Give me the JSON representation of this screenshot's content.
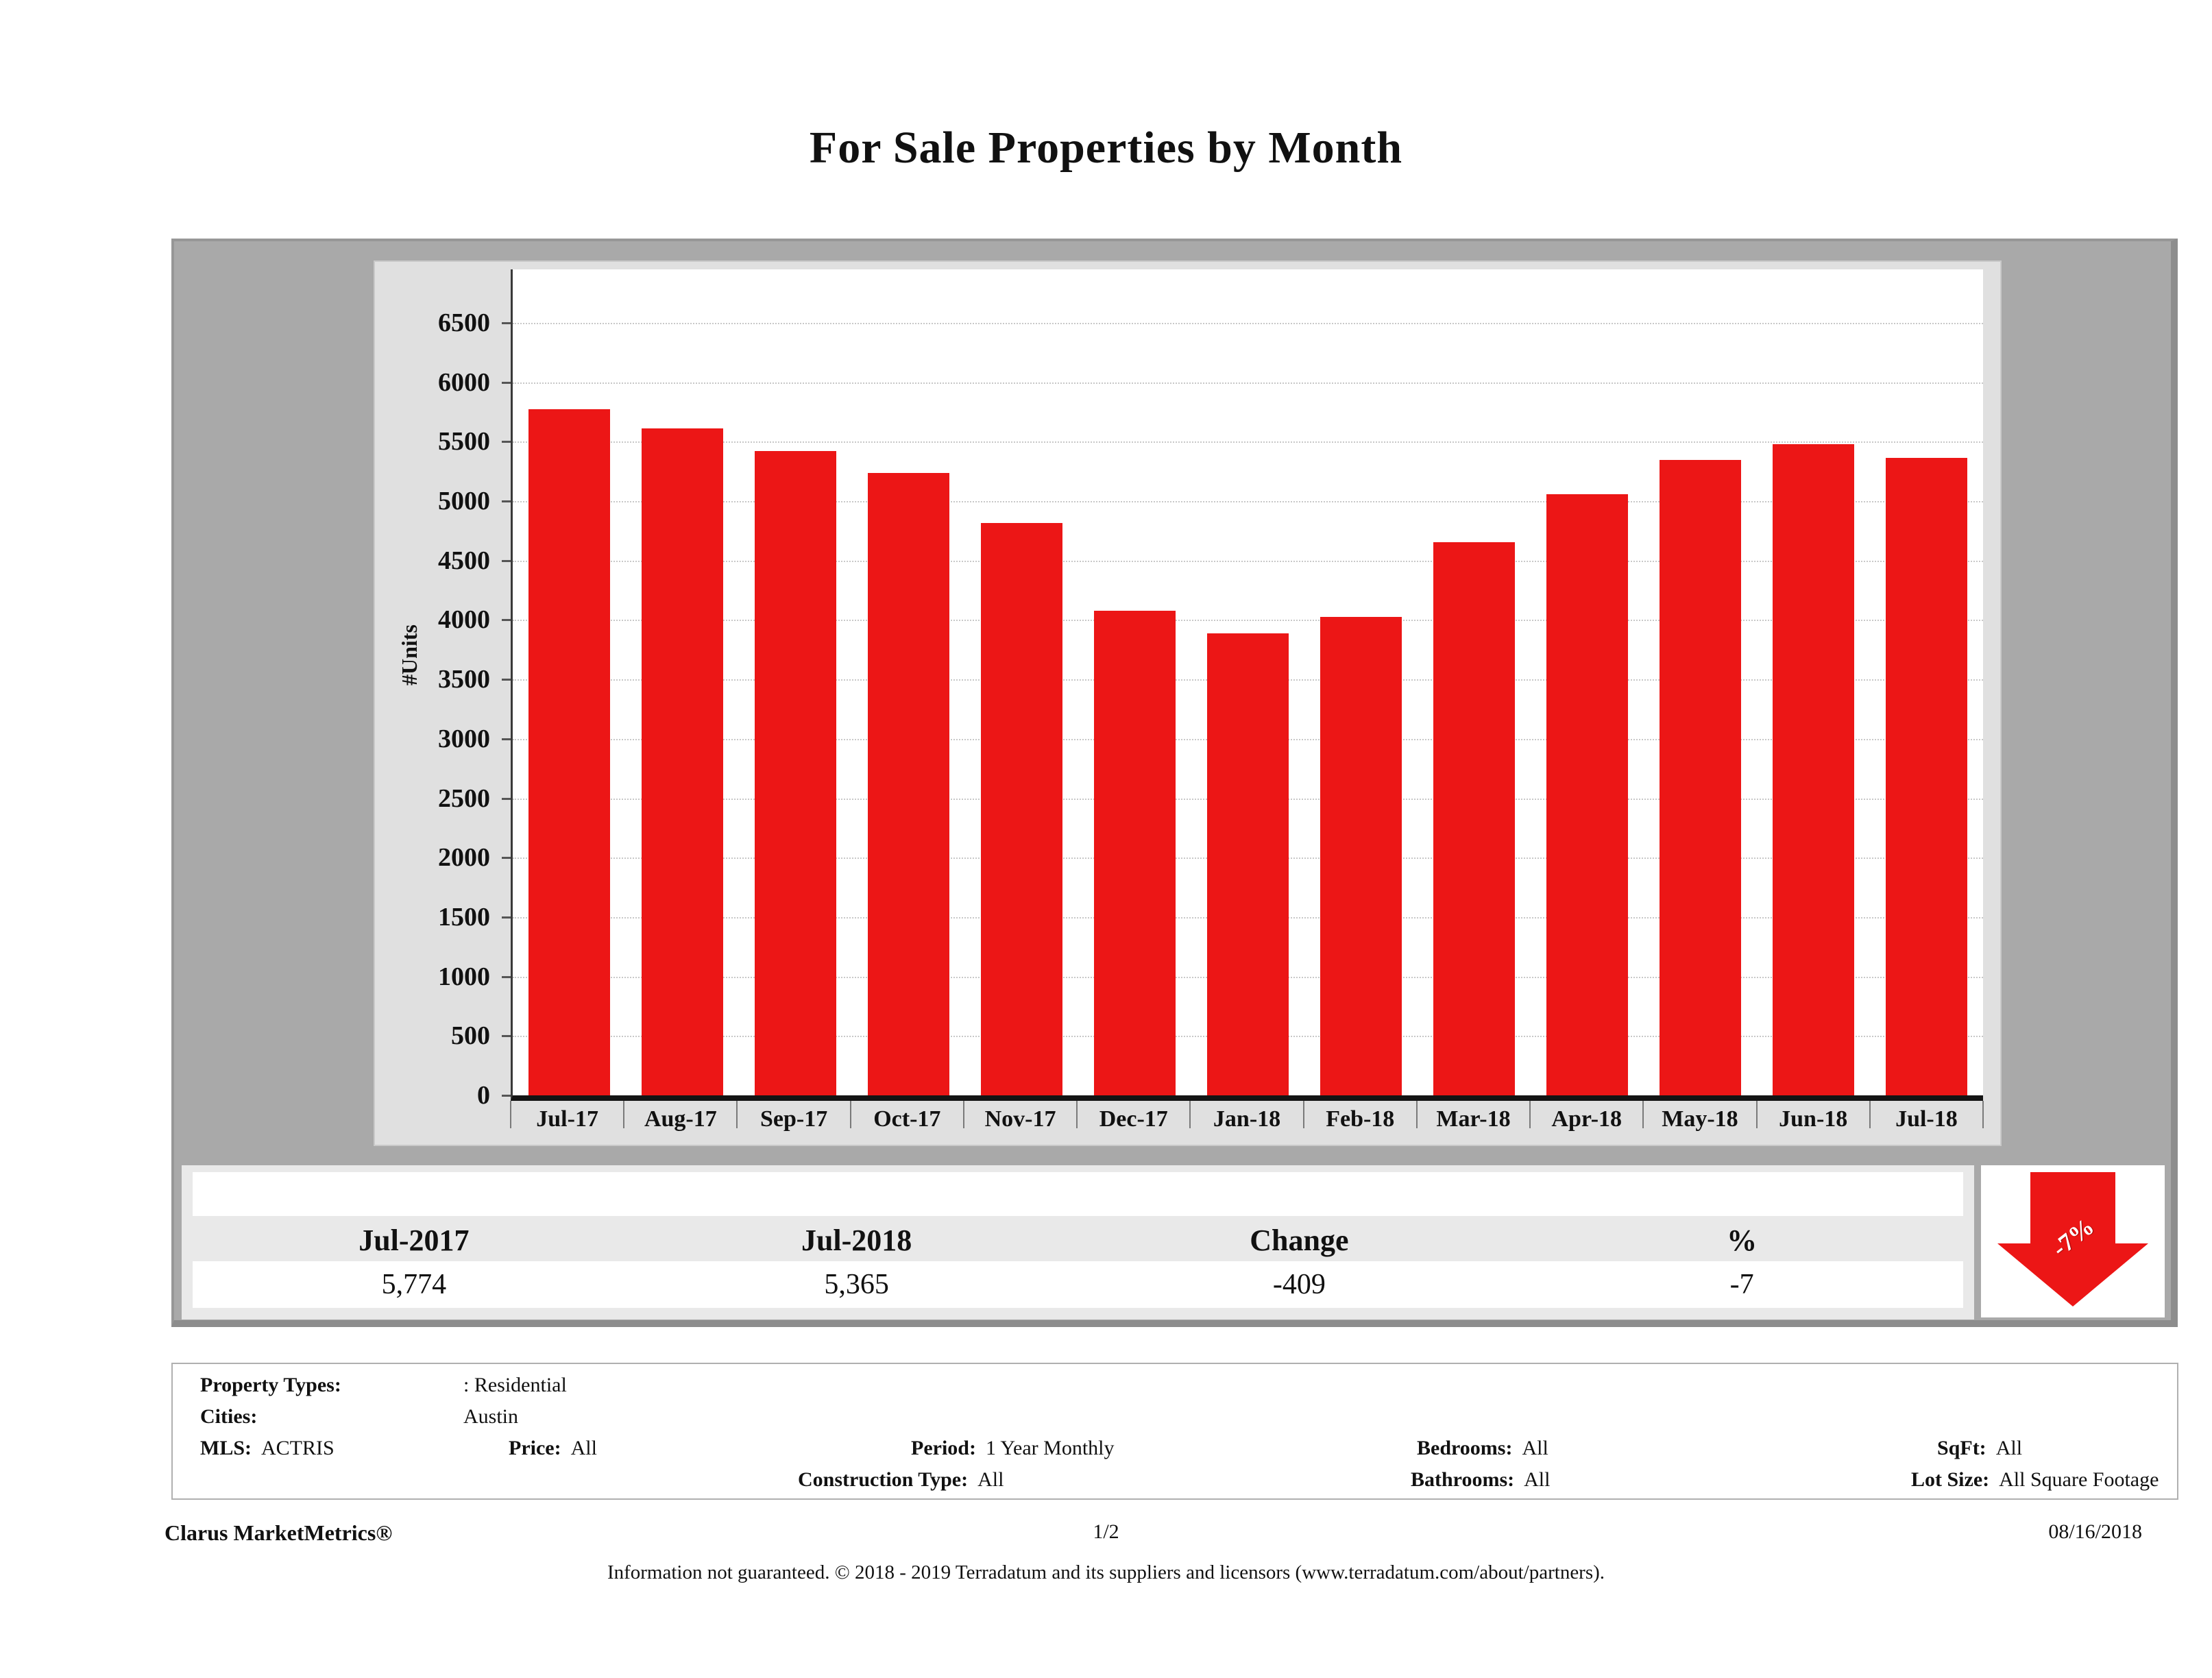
{
  "title": "For Sale Properties by Month",
  "chart_data": {
    "type": "bar",
    "title": "For Sale Properties by Month",
    "xlabel": "",
    "ylabel": "#Units",
    "categories": [
      "Jul-17",
      "Aug-17",
      "Sep-17",
      "Oct-17",
      "Nov-17",
      "Dec-17",
      "Jan-18",
      "Feb-18",
      "Mar-18",
      "Apr-18",
      "May-18",
      "Jun-18",
      "Jul-18"
    ],
    "values": [
      5774,
      5610,
      5420,
      5235,
      4815,
      4075,
      3890,
      4025,
      4655,
      5060,
      5345,
      5480,
      5365
    ],
    "ylim": [
      0,
      6950
    ],
    "yticks": [
      0,
      500,
      1000,
      1500,
      2000,
      2500,
      3000,
      3500,
      4000,
      4500,
      5000,
      5500,
      6000,
      6500
    ],
    "grid": "horizontal-dotted",
    "legend": "none",
    "bar_color": "#ec1616"
  },
  "summary_table": {
    "headers": [
      "Jul-2017",
      "Jul-2018",
      "Change",
      "%"
    ],
    "values": [
      "5,774",
      "5,365",
      "-409",
      "-7"
    ],
    "arrow": {
      "direction": "down",
      "label": "-7%",
      "color": "#ec1616"
    }
  },
  "details": {
    "property_types_label": "Property Types:",
    "property_types": ": Residential",
    "cities_label": "Cities:",
    "cities": "Austin",
    "mls_label": "MLS:",
    "mls": "ACTRIS",
    "price_label": "Price:",
    "price": "All",
    "period_label": "Period:",
    "period": "1 Year Monthly",
    "construction_label": "Construction Type:",
    "construction": "All",
    "bedrooms_label": "Bedrooms:",
    "bedrooms": "All",
    "bathrooms_label": "Bathrooms:",
    "bathrooms": "All",
    "sqft_label": "SqFt:",
    "sqft": "All",
    "lot_size_label": "Lot Size:",
    "lot_size": "All Square Footage"
  },
  "footer": {
    "brand": "Clarus MarketMetrics®",
    "page": "1/2",
    "date": "08/16/2018",
    "disclaimer": "Information not guaranteed. © 2018 - 2019 Terradatum and its suppliers and licensors (www.terradatum.com/about/partners)."
  }
}
